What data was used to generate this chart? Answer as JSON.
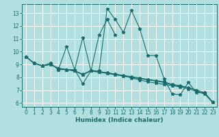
{
  "xlabel": "Humidex (Indice chaleur)",
  "bg_color": "#b2e0e0",
  "grid_color": "#ffffff",
  "line_color": "#1a6b6b",
  "xlim": [
    -0.5,
    23.5
  ],
  "ylim": [
    5.7,
    13.7
  ],
  "xticks": [
    0,
    1,
    2,
    3,
    4,
    5,
    6,
    7,
    8,
    9,
    10,
    11,
    12,
    13,
    14,
    15,
    16,
    17,
    18,
    19,
    20,
    21,
    22,
    23
  ],
  "yticks": [
    6,
    7,
    8,
    9,
    10,
    11,
    12,
    13
  ],
  "lines": [
    {
      "x": [
        0,
        1,
        2,
        3,
        4,
        5,
        6,
        7,
        8,
        9,
        10,
        11,
        12,
        13,
        14,
        15,
        16,
        17,
        18,
        19,
        20,
        21,
        22,
        23
      ],
      "y": [
        9.6,
        9.1,
        8.9,
        9.1,
        8.6,
        8.6,
        8.6,
        7.5,
        8.5,
        8.5,
        13.35,
        12.5,
        11.5,
        13.2,
        11.8,
        9.7,
        9.7,
        7.9,
        6.7,
        6.65,
        7.6,
        6.8,
        6.8,
        6.05
      ]
    },
    {
      "x": [
        0,
        1,
        2,
        3,
        4,
        5,
        6,
        7,
        8,
        9,
        10,
        11,
        12,
        13,
        14,
        15,
        16,
        17,
        18,
        19,
        20,
        21,
        22,
        23
      ],
      "y": [
        9.6,
        9.1,
        8.9,
        9.0,
        8.7,
        8.6,
        8.5,
        8.25,
        8.5,
        8.4,
        8.35,
        8.25,
        8.15,
        8.05,
        7.95,
        7.85,
        7.75,
        7.65,
        7.45,
        7.35,
        7.2,
        7.0,
        6.8,
        6.05
      ]
    },
    {
      "x": [
        0,
        1,
        2,
        3,
        4,
        5,
        6,
        7,
        8,
        9,
        10,
        11,
        12,
        13,
        14,
        15,
        16,
        17,
        18,
        19,
        20,
        21,
        22,
        23
      ],
      "y": [
        9.6,
        9.1,
        8.9,
        9.0,
        8.7,
        8.6,
        8.5,
        8.2,
        8.5,
        8.4,
        8.3,
        8.2,
        8.1,
        8.0,
        7.9,
        7.8,
        7.7,
        7.6,
        7.4,
        7.3,
        7.2,
        7.0,
        6.8,
        6.05
      ]
    },
    {
      "x": [
        0,
        1,
        2,
        3,
        4,
        5,
        6,
        7,
        8,
        9,
        10,
        11,
        12,
        13,
        14,
        15,
        16,
        17,
        18,
        19,
        20,
        21,
        22,
        23
      ],
      "y": [
        9.6,
        9.1,
        8.9,
        9.0,
        8.7,
        8.6,
        8.5,
        8.2,
        8.55,
        8.45,
        8.35,
        8.25,
        8.1,
        7.95,
        7.8,
        7.65,
        7.55,
        7.45,
        7.35,
        7.25,
        7.1,
        6.9,
        6.7,
        6.05
      ]
    },
    {
      "x": [
        3,
        4,
        5,
        6,
        7,
        8,
        9,
        10,
        11
      ],
      "y": [
        9.1,
        8.6,
        10.4,
        8.6,
        11.1,
        8.5,
        11.3,
        12.5,
        11.3
      ]
    }
  ],
  "marker": "*",
  "markersize": 3.5,
  "linewidth": 0.8,
  "tick_fontsize": 5.5,
  "xlabel_fontsize": 6.5
}
